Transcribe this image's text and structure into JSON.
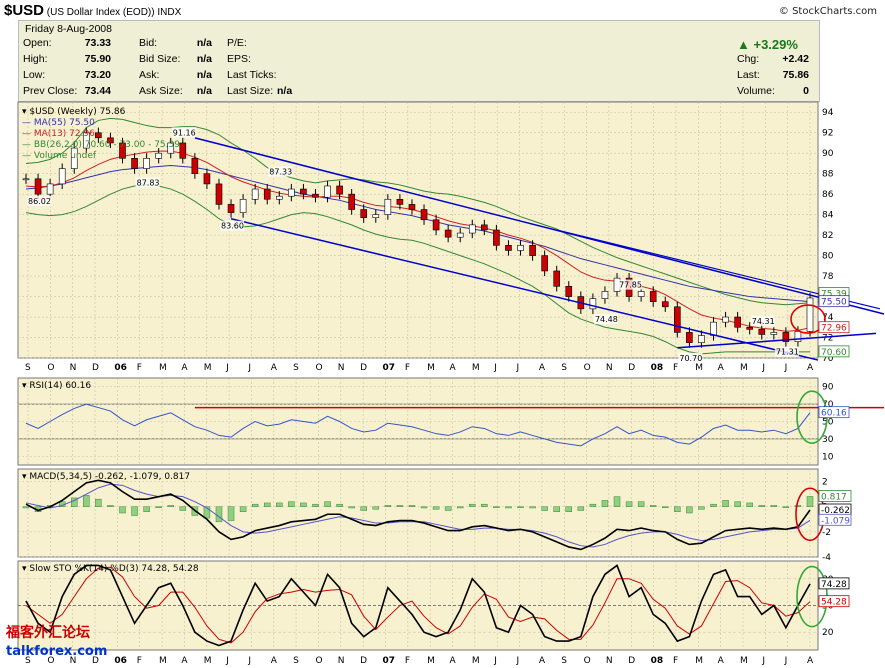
{
  "header": {
    "symbol": "$USD",
    "name": "(US Dollar Index (EOD))",
    "exchange": "INDX",
    "credit": "© StockCharts.com"
  },
  "quote": {
    "date": "Friday  8-Aug-2008",
    "rows": [
      {
        "l1": "Open:",
        "v1": "73.33",
        "l2": "Bid:",
        "v2": "n/a",
        "l3": "P/E:",
        "v3": ""
      },
      {
        "l1": "High:",
        "v1": "75.90",
        "l2": "Bid Size:",
        "v2": "n/a",
        "l3": "EPS:",
        "v3": ""
      },
      {
        "l1": "Low:",
        "v1": "73.20",
        "l2": "Ask:",
        "v2": "n/a",
        "l3": "Last Ticks:",
        "v3": ""
      },
      {
        "l1": "Prev Close:",
        "v1": "73.44",
        "l2": "Ask Size:",
        "v2": "n/a",
        "l3": "Last Size:",
        "v3": "n/a"
      }
    ],
    "change_pct": "▲ +3.29%",
    "right": [
      {
        "l": "Chg:",
        "v": "+2.42"
      },
      {
        "l": "Last:",
        "v": "75.86"
      },
      {
        "l": "Volume:",
        "v": "0"
      }
    ]
  },
  "colors": {
    "panel_bg": "#f7f1d0",
    "grid": "#c9c2a5",
    "up": "#ffffff",
    "down": "#cc0000",
    "ma55": "#3333aa",
    "ma13": "#cc2222",
    "bb": "#338833",
    "trend": "#0000cc",
    "rsi": "#3355cc",
    "macd": "#000000",
    "signal": "#5555cc",
    "hist": "#33aa33",
    "k": "#000000",
    "d": "#cc0000",
    "circle_red": "#dd0000",
    "circle_green": "#33aa33"
  },
  "chart_data": [
    {
      "type": "line",
      "title": "$USD (Weekly) 75.86",
      "legend": [
        "$USD (Weekly) 75.86",
        "MA(55) 75.50",
        "MA(13) 72.96",
        "BB(26,2.0) 70.60 - 73.00 - 75.39",
        "Volume undef"
      ],
      "x_labels": [
        "S",
        "O",
        "N",
        "D",
        "06",
        "F",
        "M",
        "A",
        "M",
        "J",
        "J",
        "A",
        "S",
        "O",
        "N",
        "D",
        "07",
        "F",
        "M",
        "A",
        "M",
        "J",
        "J",
        "A",
        "S",
        "O",
        "N",
        "D",
        "08",
        "F",
        "M",
        "A",
        "M",
        "J",
        "J",
        "A"
      ],
      "ylim": [
        70,
        95
      ],
      "y_ticks": [
        70,
        72,
        74,
        76,
        78,
        80,
        82,
        84,
        86,
        88,
        90,
        92,
        94
      ],
      "annotations": [
        {
          "text": "86.02",
          "x": "2005-09",
          "y": 86.02
        },
        {
          "text": "91.16",
          "x": "2006-03",
          "y": 91.16
        },
        {
          "text": "87.83",
          "x": "2006-01",
          "y": 87.83
        },
        {
          "text": "87.33",
          "x": "2006-06",
          "y": 87.33
        },
        {
          "text": "83.60",
          "x": "2006-05",
          "y": 83.6
        },
        {
          "text": "77.85",
          "x": "2007-12",
          "y": 77.85
        },
        {
          "text": "74.48",
          "x": "2007-11",
          "y": 74.48
        },
        {
          "text": "74.31",
          "x": "2008-06",
          "y": 74.31
        },
        {
          "text": "70.70",
          "x": "2008-03",
          "y": 70.7
        },
        {
          "text": "71.31",
          "x": "2008-07",
          "y": 71.31
        }
      ],
      "right_labels": [
        "75.86",
        "75.39",
        "75.50",
        "72.96",
        "70.60"
      ],
      "series": [
        {
          "name": "$USD",
          "values": [
            87.5,
            86.0,
            87.0,
            88.5,
            90.5,
            92.0,
            91.5,
            91.0,
            89.5,
            88.5,
            89.5,
            90.0,
            91.0,
            89.5,
            88.0,
            87.0,
            85.0,
            84.2,
            85.5,
            86.5,
            85.5,
            85.8,
            86.5,
            86.0,
            85.7,
            86.8,
            86.0,
            84.5,
            83.7,
            84.0,
            85.5,
            85.0,
            84.5,
            83.5,
            82.5,
            81.8,
            82.2,
            83.0,
            82.5,
            81.0,
            80.5,
            81.0,
            80.0,
            78.5,
            77.0,
            76.0,
            74.8,
            75.8,
            76.5,
            77.8,
            76.0,
            76.5,
            75.5,
            75.0,
            72.5,
            71.5,
            72.2,
            73.5,
            74.0,
            73.0,
            72.8,
            72.3,
            72.5,
            71.6,
            72.6,
            75.86
          ]
        },
        {
          "name": "MA(55)",
          "values": [
            86.5,
            86.6,
            86.8,
            87.0,
            87.3,
            87.6,
            87.9,
            88.2,
            88.4,
            88.5,
            88.6,
            88.7,
            88.8,
            88.7,
            88.6,
            88.4,
            88.1,
            87.8,
            87.5,
            87.2,
            86.9,
            86.6,
            86.3,
            86.0,
            85.8,
            85.6,
            85.4,
            85.1,
            84.8,
            84.5,
            84.3,
            84.1,
            83.9,
            83.6,
            83.3,
            83.0,
            82.8,
            82.6,
            82.4,
            82.1,
            81.8,
            81.5,
            81.2,
            80.9,
            80.5,
            80.1,
            79.7,
            79.4,
            79.1,
            78.8,
            78.5,
            78.2,
            77.9,
            77.6,
            77.3,
            77.0,
            76.8,
            76.6,
            76.4,
            76.2,
            76.0,
            75.9,
            75.8,
            75.7,
            75.6,
            75.5
          ]
        },
        {
          "name": "MA(13)",
          "values": [
            86.8,
            86.7,
            86.8,
            87.1,
            87.6,
            88.3,
            88.9,
            89.4,
            89.7,
            89.9,
            90.1,
            90.2,
            90.2,
            90.0,
            89.6,
            89.1,
            88.4,
            87.7,
            87.2,
            86.8,
            86.4,
            86.1,
            85.9,
            85.8,
            85.7,
            85.8,
            85.8,
            85.6,
            85.2,
            84.9,
            84.8,
            84.7,
            84.5,
            84.2,
            83.8,
            83.4,
            83.1,
            82.9,
            82.7,
            82.4,
            82.0,
            81.7,
            81.3,
            80.7,
            80.0,
            79.2,
            78.4,
            77.9,
            77.6,
            77.5,
            77.2,
            77.0,
            76.7,
            76.2,
            75.5,
            74.8,
            74.2,
            73.9,
            73.7,
            73.4,
            73.1,
            72.9,
            72.8,
            72.6,
            72.7,
            72.96
          ]
        },
        {
          "name": "BB upper",
          "values": [
            89.0,
            89.1,
            89.4,
            90.0,
            91.0,
            92.5,
            93.2,
            93.4,
            93.3,
            93.0,
            92.7,
            92.5,
            92.5,
            92.6,
            92.6,
            92.3,
            91.8,
            91.0,
            90.3,
            89.5,
            88.6,
            88.0,
            87.6,
            87.3,
            87.1,
            87.3,
            87.4,
            87.5,
            87.4,
            87.2,
            87.1,
            86.9,
            86.6,
            86.3,
            86.1,
            86.0,
            85.8,
            85.5,
            85.2,
            84.8,
            84.3,
            83.8,
            83.4,
            83.0,
            82.6,
            82.0,
            81.4,
            80.8,
            80.3,
            79.8,
            79.4,
            79.0,
            78.6,
            78.2,
            77.8,
            77.4,
            77.0,
            76.6,
            76.2,
            75.9,
            75.6,
            75.4,
            75.3,
            75.2,
            75.3,
            75.39
          ]
        },
        {
          "name": "BB lower",
          "values": [
            84.2,
            84.0,
            83.9,
            84.0,
            84.3,
            84.8,
            85.4,
            86.0,
            86.5,
            86.8,
            86.9,
            86.8,
            86.5,
            86.0,
            85.3,
            84.5,
            83.6,
            83.0,
            82.8,
            82.9,
            83.2,
            83.6,
            84.0,
            84.2,
            84.1,
            83.8,
            83.4,
            83.0,
            82.5,
            82.1,
            81.8,
            81.6,
            81.5,
            81.2,
            80.8,
            80.4,
            80.0,
            79.6,
            79.2,
            78.7,
            78.2,
            77.6,
            77.0,
            76.2,
            75.3,
            74.4,
            73.8,
            73.4,
            73.0,
            72.8,
            72.6,
            72.4,
            72.1,
            71.6,
            71.0,
            70.6,
            70.4,
            70.5,
            70.6,
            70.6,
            70.6,
            70.6,
            70.6,
            70.6,
            70.6,
            70.6
          ]
        }
      ]
    },
    {
      "type": "line",
      "title": "RSI(14) 60.16",
      "ylim": [
        0,
        100
      ],
      "y_ticks": [
        10,
        30,
        50,
        70,
        90
      ],
      "right_labels": [
        "60.16"
      ],
      "series": [
        {
          "name": "RSI(14)",
          "values": [
            48,
            42,
            50,
            58,
            65,
            70,
            66,
            62,
            52,
            45,
            52,
            56,
            60,
            52,
            44,
            40,
            34,
            32,
            42,
            50,
            45,
            47,
            52,
            50,
            48,
            56,
            50,
            42,
            38,
            40,
            48,
            46,
            44,
            40,
            36,
            34,
            38,
            44,
            42,
            36,
            34,
            38,
            34,
            30,
            26,
            24,
            22,
            30,
            36,
            44,
            36,
            40,
            34,
            32,
            26,
            24,
            32,
            42,
            46,
            40,
            40,
            38,
            40,
            36,
            42,
            60.16
          ]
        }
      ]
    },
    {
      "type": "line",
      "title": "MACD(5,34,5) -0.262, -1.079, 0.817",
      "ylim": [
        -4,
        3
      ],
      "y_ticks": [
        2,
        0,
        -2,
        -4
      ],
      "right_labels": [
        "0.817",
        "-0.262",
        "-1.079"
      ],
      "series": [
        {
          "name": "MACD(5,34,5)",
          "values": [
            0.2,
            -0.3,
            0.0,
            0.5,
            1.2,
            1.9,
            2.1,
            1.9,
            1.2,
            0.6,
            0.6,
            0.8,
            1.0,
            0.5,
            -0.3,
            -1.0,
            -2.0,
            -2.6,
            -2.4,
            -1.9,
            -1.7,
            -1.5,
            -1.2,
            -1.1,
            -1.0,
            -0.6,
            -0.6,
            -1.0,
            -1.4,
            -1.5,
            -1.2,
            -1.1,
            -1.1,
            -1.3,
            -1.6,
            -1.9,
            -1.9,
            -1.6,
            -1.5,
            -1.7,
            -1.9,
            -1.8,
            -2.0,
            -2.4,
            -2.8,
            -3.2,
            -3.4,
            -3.0,
            -2.5,
            -1.8,
            -1.9,
            -1.7,
            -1.9,
            -2.0,
            -2.6,
            -3.0,
            -2.9,
            -2.4,
            -1.9,
            -1.8,
            -1.7,
            -1.8,
            -1.7,
            -1.8,
            -1.6,
            -0.262
          ]
        },
        {
          "name": "Signal",
          "values": [
            0.3,
            0.1,
            -0.1,
            0.1,
            0.5,
            1.0,
            1.5,
            1.8,
            1.7,
            1.3,
            1.0,
            0.8,
            0.9,
            0.8,
            0.4,
            -0.1,
            -0.8,
            -1.5,
            -2.0,
            -2.1,
            -2.0,
            -1.8,
            -1.6,
            -1.4,
            -1.2,
            -1.0,
            -0.8,
            -0.9,
            -1.1,
            -1.3,
            -1.3,
            -1.2,
            -1.2,
            -1.2,
            -1.4,
            -1.6,
            -1.8,
            -1.8,
            -1.7,
            -1.7,
            -1.8,
            -1.8,
            -1.9,
            -2.1,
            -2.4,
            -2.8,
            -3.1,
            -3.2,
            -3.0,
            -2.6,
            -2.3,
            -2.1,
            -2.0,
            -2.0,
            -2.2,
            -2.5,
            -2.7,
            -2.6,
            -2.4,
            -2.2,
            -2.0,
            -1.9,
            -1.8,
            -1.8,
            -1.7,
            -1.079
          ]
        },
        {
          "name": "Histogram",
          "values": [
            -0.1,
            -0.4,
            0.1,
            0.4,
            0.7,
            0.9,
            0.6,
            0.1,
            -0.5,
            -0.7,
            -0.4,
            0.0,
            0.1,
            -0.3,
            -0.7,
            -0.9,
            -1.2,
            -1.1,
            -0.4,
            0.2,
            0.3,
            0.3,
            0.4,
            0.3,
            0.2,
            0.4,
            0.2,
            -0.1,
            -0.3,
            -0.2,
            0.1,
            0.1,
            0.1,
            -0.1,
            -0.2,
            -0.3,
            -0.1,
            0.2,
            0.2,
            0.0,
            -0.1,
            0.0,
            -0.1,
            -0.3,
            -0.4,
            -0.4,
            -0.3,
            0.2,
            0.5,
            0.8,
            0.4,
            0.4,
            0.1,
            0.0,
            -0.4,
            -0.5,
            -0.2,
            0.2,
            0.5,
            0.4,
            0.3,
            0.1,
            0.1,
            0.0,
            0.1,
            0.817
          ]
        }
      ]
    },
    {
      "type": "line",
      "title": "Slow STO %K(14) %D(3) 74.28, 54.28",
      "ylim": [
        0,
        100
      ],
      "y_ticks": [
        20,
        50,
        80
      ],
      "right_labels": [
        "74.28",
        "54.28"
      ],
      "series": [
        {
          "name": "%K(14)",
          "values": [
            55,
            30,
            20,
            60,
            85,
            95,
            95,
            90,
            60,
            30,
            50,
            70,
            75,
            50,
            20,
            10,
            5,
            10,
            45,
            75,
            55,
            60,
            80,
            65,
            50,
            85,
            70,
            30,
            15,
            25,
            70,
            55,
            40,
            20,
            15,
            20,
            45,
            80,
            65,
            25,
            20,
            50,
            40,
            15,
            10,
            10,
            15,
            60,
            85,
            95,
            60,
            70,
            40,
            30,
            10,
            15,
            55,
            85,
            90,
            60,
            60,
            40,
            50,
            25,
            50,
            74.28
          ]
        },
        {
          "name": "%D(3)",
          "values": [
            50,
            40,
            30,
            40,
            60,
            80,
            92,
            93,
            82,
            60,
            47,
            50,
            65,
            65,
            48,
            27,
            12,
            8,
            20,
            43,
            58,
            63,
            65,
            68,
            65,
            67,
            68,
            62,
            38,
            23,
            37,
            50,
            55,
            38,
            25,
            18,
            27,
            48,
            63,
            57,
            37,
            32,
            37,
            35,
            22,
            12,
            12,
            28,
            53,
            80,
            80,
            75,
            57,
            47,
            27,
            18,
            27,
            52,
            77,
            78,
            70,
            53,
            50,
            38,
            42,
            54.28
          ]
        }
      ]
    }
  ],
  "watermark": {
    "cn": "福客外汇论坛",
    "site": "talkforex.com"
  }
}
